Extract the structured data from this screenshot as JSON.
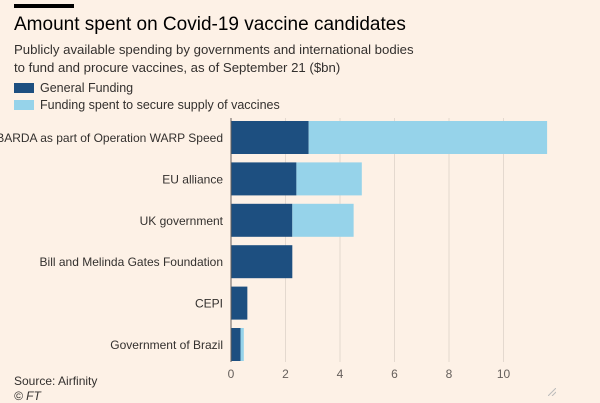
{
  "title": "Amount spent on Covid-19 vaccine candidates",
  "subtitle": "Publicly available spending by governments and international bodies to fund and procure vaccines, as of September 21 ($bn)",
  "source": "Source: Airfinity",
  "copyright": "© FT",
  "colors": {
    "general": "#1d4f80",
    "supply": "#96d3ea",
    "background": "#fdf1e6",
    "grid": "#e4d9cf"
  },
  "chart_data": {
    "type": "bar",
    "orientation": "horizontal",
    "stacked": true,
    "categories": [
      "BARDA as part of Operation WARP Speed",
      "EU alliance",
      "UK government",
      "Bill and Melinda Gates Foundation",
      "CEPI",
      "Government of Brazil"
    ],
    "series": [
      {
        "name": "General Funding",
        "values": [
          2.85,
          2.4,
          2.25,
          2.25,
          0.6,
          0.35
        ]
      },
      {
        "name": "Funding spent to secure supply of vaccines",
        "values": [
          8.75,
          2.4,
          2.25,
          0,
          0,
          0.12
        ]
      }
    ],
    "xticks": [
      0,
      2,
      4,
      6,
      8,
      10
    ],
    "xlim": [
      0,
      12
    ],
    "grid": true,
    "legend_position": "top-left"
  }
}
